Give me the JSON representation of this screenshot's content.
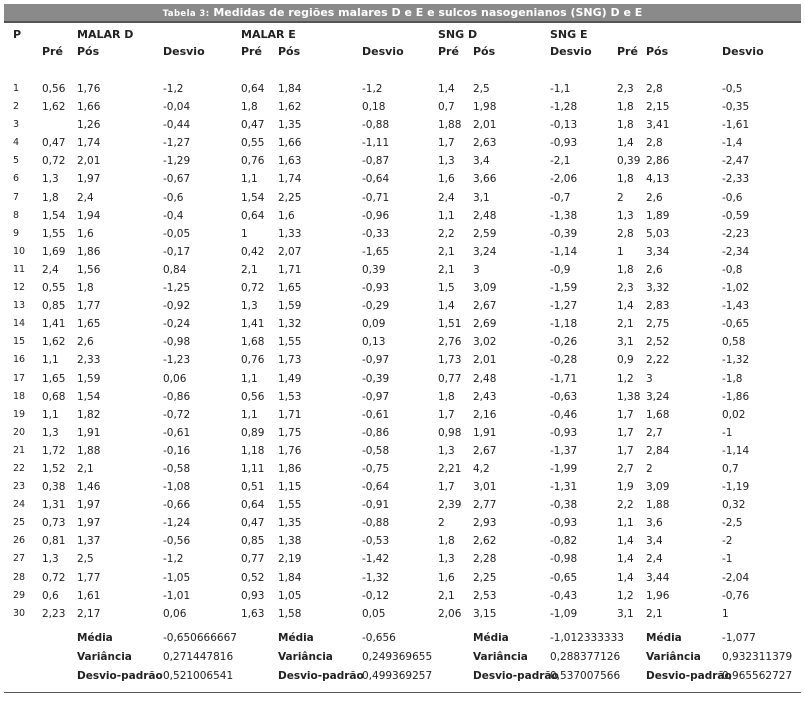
{
  "table": {
    "title_caps": "Tabela 3:",
    "title_rest": " Medidas de regiões malares D e  E e sulcos nasogenianos (SNG) D e E"
  },
  "headers": {
    "p": "P",
    "malar_d": "MALAR D",
    "malar_e": "MALAR E",
    "sng_d": "SNG D",
    "sng_e": "SNG E",
    "pre": "Pré",
    "pos": "Pós",
    "desvio": "Desvio"
  },
  "rows": [
    [
      "1",
      "0,56",
      "1,76",
      "-1,2",
      "0,64",
      "1,84",
      "-1,2",
      "1,4",
      "2,5",
      "-1,1",
      "2,3",
      "2,8",
      "-0,5"
    ],
    [
      "2",
      "1,62",
      "1,66",
      "-0,04",
      "1,8",
      "1,62",
      "0,18",
      "0,7",
      "1,98",
      "-1,28",
      "1,8",
      "2,15",
      "-0,35"
    ],
    [
      "3",
      "",
      "1,26",
      "-0,44",
      "0,47",
      "1,35",
      "-0,88",
      "1,88",
      "2,01",
      "-0,13",
      "1,8",
      "3,41",
      "-1,61"
    ],
    [
      "4",
      "0,47",
      "1,74",
      "-1,27",
      "0,55",
      "1,66",
      "-1,11",
      "1,7",
      "2,63",
      "-0,93",
      "1,4",
      "2,8",
      "-1,4"
    ],
    [
      "5",
      "0,72",
      "2,01",
      "-1,29",
      "0,76",
      "1,63",
      "-0,87",
      "1,3",
      "3,4",
      "-2,1",
      "0,39",
      "2,86",
      "-2,47"
    ],
    [
      "6",
      "1,3",
      "1,97",
      "-0,67",
      "1,1",
      "1,74",
      "-0,64",
      "1,6",
      "3,66",
      "-2,06",
      "1,8",
      "4,13",
      "-2,33"
    ],
    [
      "7",
      "1,8",
      "2,4",
      "-0,6",
      "1,54",
      "2,25",
      "-0,71",
      "2,4",
      "3,1",
      "-0,7",
      "2",
      "2,6",
      "-0,6"
    ],
    [
      "8",
      "1,54",
      "1,94",
      "-0,4",
      "0,64",
      "1,6",
      "-0,96",
      "1,1",
      "2,48",
      "-1,38",
      "1,3",
      "1,89",
      "-0,59"
    ],
    [
      "9",
      "1,55",
      "1,6",
      "-0,05",
      "1",
      "1,33",
      "-0,33",
      "2,2",
      "2,59",
      "-0,39",
      "2,8",
      "5,03",
      "-2,23"
    ],
    [
      "10",
      "1,69",
      "1,86",
      "-0,17",
      "0,42",
      "2,07",
      "-1,65",
      "2,1",
      "3,24",
      "-1,14",
      "1",
      "3,34",
      "-2,34"
    ],
    [
      "11",
      "2,4",
      "1,56",
      "0,84",
      "2,1",
      "1,71",
      "0,39",
      "2,1",
      "3",
      "-0,9",
      "1,8",
      "2,6",
      "-0,8"
    ],
    [
      "12",
      "0,55",
      "1,8",
      "-1,25",
      "0,72",
      "1,65",
      "-0,93",
      "1,5",
      "3,09",
      "-1,59",
      "2,3",
      "3,32",
      "-1,02"
    ],
    [
      "13",
      "0,85",
      "1,77",
      "-0,92",
      "1,3",
      "1,59",
      "-0,29",
      "1,4",
      "2,67",
      "-1,27",
      "1,4",
      "2,83",
      "-1,43"
    ],
    [
      "14",
      "1,41",
      "1,65",
      "-0,24",
      "1,41",
      "1,32",
      "0,09",
      "1,51",
      "2,69",
      "-1,18",
      "2,1",
      "2,75",
      "-0,65"
    ],
    [
      "15",
      "1,62",
      "2,6",
      "-0,98",
      "1,68",
      "1,55",
      "0,13",
      "2,76",
      "3,02",
      "-0,26",
      "3,1",
      "2,52",
      "0,58"
    ],
    [
      "16",
      "1,1",
      "2,33",
      "-1,23",
      "0,76",
      "1,73",
      "-0,97",
      "1,73",
      "2,01",
      "-0,28",
      "0,9",
      "2,22",
      "-1,32"
    ],
    [
      "17",
      "1,65",
      "1,59",
      "0,06",
      "1,1",
      "1,49",
      "-0,39",
      "0,77",
      "2,48",
      "-1,71",
      "1,2",
      "3",
      "-1,8"
    ],
    [
      "18",
      "0,68",
      "1,54",
      "-0,86",
      "0,56",
      "1,53",
      "-0,97",
      "1,8",
      "2,43",
      "-0,63",
      "1,38",
      "3,24",
      "-1,86"
    ],
    [
      "19",
      "1,1",
      "1,82",
      "-0,72",
      "1,1",
      "1,71",
      "-0,61",
      "1,7",
      "2,16",
      "-0,46",
      "1,7",
      "1,68",
      "0,02"
    ],
    [
      "20",
      "1,3",
      "1,91",
      "-0,61",
      "0,89",
      "1,75",
      "-0,86",
      "0,98",
      "1,91",
      "-0,93",
      "1,7",
      "2,7",
      "-1"
    ],
    [
      "21",
      "1,72",
      "1,88",
      "-0,16",
      "1,18",
      "1,76",
      "-0,58",
      "1,3",
      "2,67",
      "-1,37",
      "1,7",
      "2,84",
      "-1,14"
    ],
    [
      "22",
      "1,52",
      "2,1",
      "-0,58",
      "1,11",
      "1,86",
      "-0,75",
      "2,21",
      "4,2",
      "-1,99",
      "2,7",
      "2",
      "0,7"
    ],
    [
      "23",
      "0,38",
      "1,46",
      "-1,08",
      "0,51",
      "1,15",
      "-0,64",
      "1,7",
      "3,01",
      "-1,31",
      "1,9",
      "3,09",
      "-1,19"
    ],
    [
      "24",
      "1,31",
      "1,97",
      "-0,66",
      "0,64",
      "1,55",
      "-0,91",
      "2,39",
      "2,77",
      "-0,38",
      "2,2",
      "1,88",
      "0,32"
    ],
    [
      "25",
      "0,73",
      "1,97",
      "-1,24",
      "0,47",
      "1,35",
      "-0,88",
      "2",
      "2,93",
      "-0,93",
      "1,1",
      "3,6",
      "-2,5"
    ],
    [
      "26",
      "0,81",
      "1,37",
      "-0,56",
      "0,85",
      "1,38",
      "-0,53",
      "1,8",
      "2,62",
      "-0,82",
      "1,4",
      "3,4",
      "-2"
    ],
    [
      "27",
      "1,3",
      "2,5",
      "-1,2",
      "0,77",
      "2,19",
      "-1,42",
      "1,3",
      "2,28",
      "-0,98",
      "1,4",
      "2,4",
      "-1"
    ],
    [
      "28",
      "0,72",
      "1,77",
      "-1,05",
      "0,52",
      "1,84",
      "-1,32",
      "1,6",
      "2,25",
      "-0,65",
      "1,4",
      "3,44",
      "-2,04"
    ],
    [
      "29",
      "0,6",
      "1,61",
      "-1,01",
      "0,93",
      "1,05",
      "-0,12",
      "2,1",
      "2,53",
      "-0,43",
      "1,2",
      "1,96",
      "-0,76"
    ],
    [
      "30",
      "2,23",
      "2,17",
      "0,06",
      "1,63",
      "1,58",
      "0,05",
      "2,06",
      "3,15",
      "-1,09",
      "3,1",
      "2,1",
      "1"
    ]
  ],
  "stats": {
    "labels": [
      "Média",
      "Variância",
      "Desvio-padrão"
    ],
    "malar_d": [
      "-0,650666667",
      "0,271447816",
      "0,521006541"
    ],
    "malar_e": [
      "-0,656",
      "0,249369655",
      "0,499369257"
    ],
    "sng_d": [
      "-1,012333333",
      "0,288377126",
      "0,537007566"
    ],
    "sng_e": [
      "-1,077",
      "0,932311379",
      "0,965562727"
    ]
  }
}
